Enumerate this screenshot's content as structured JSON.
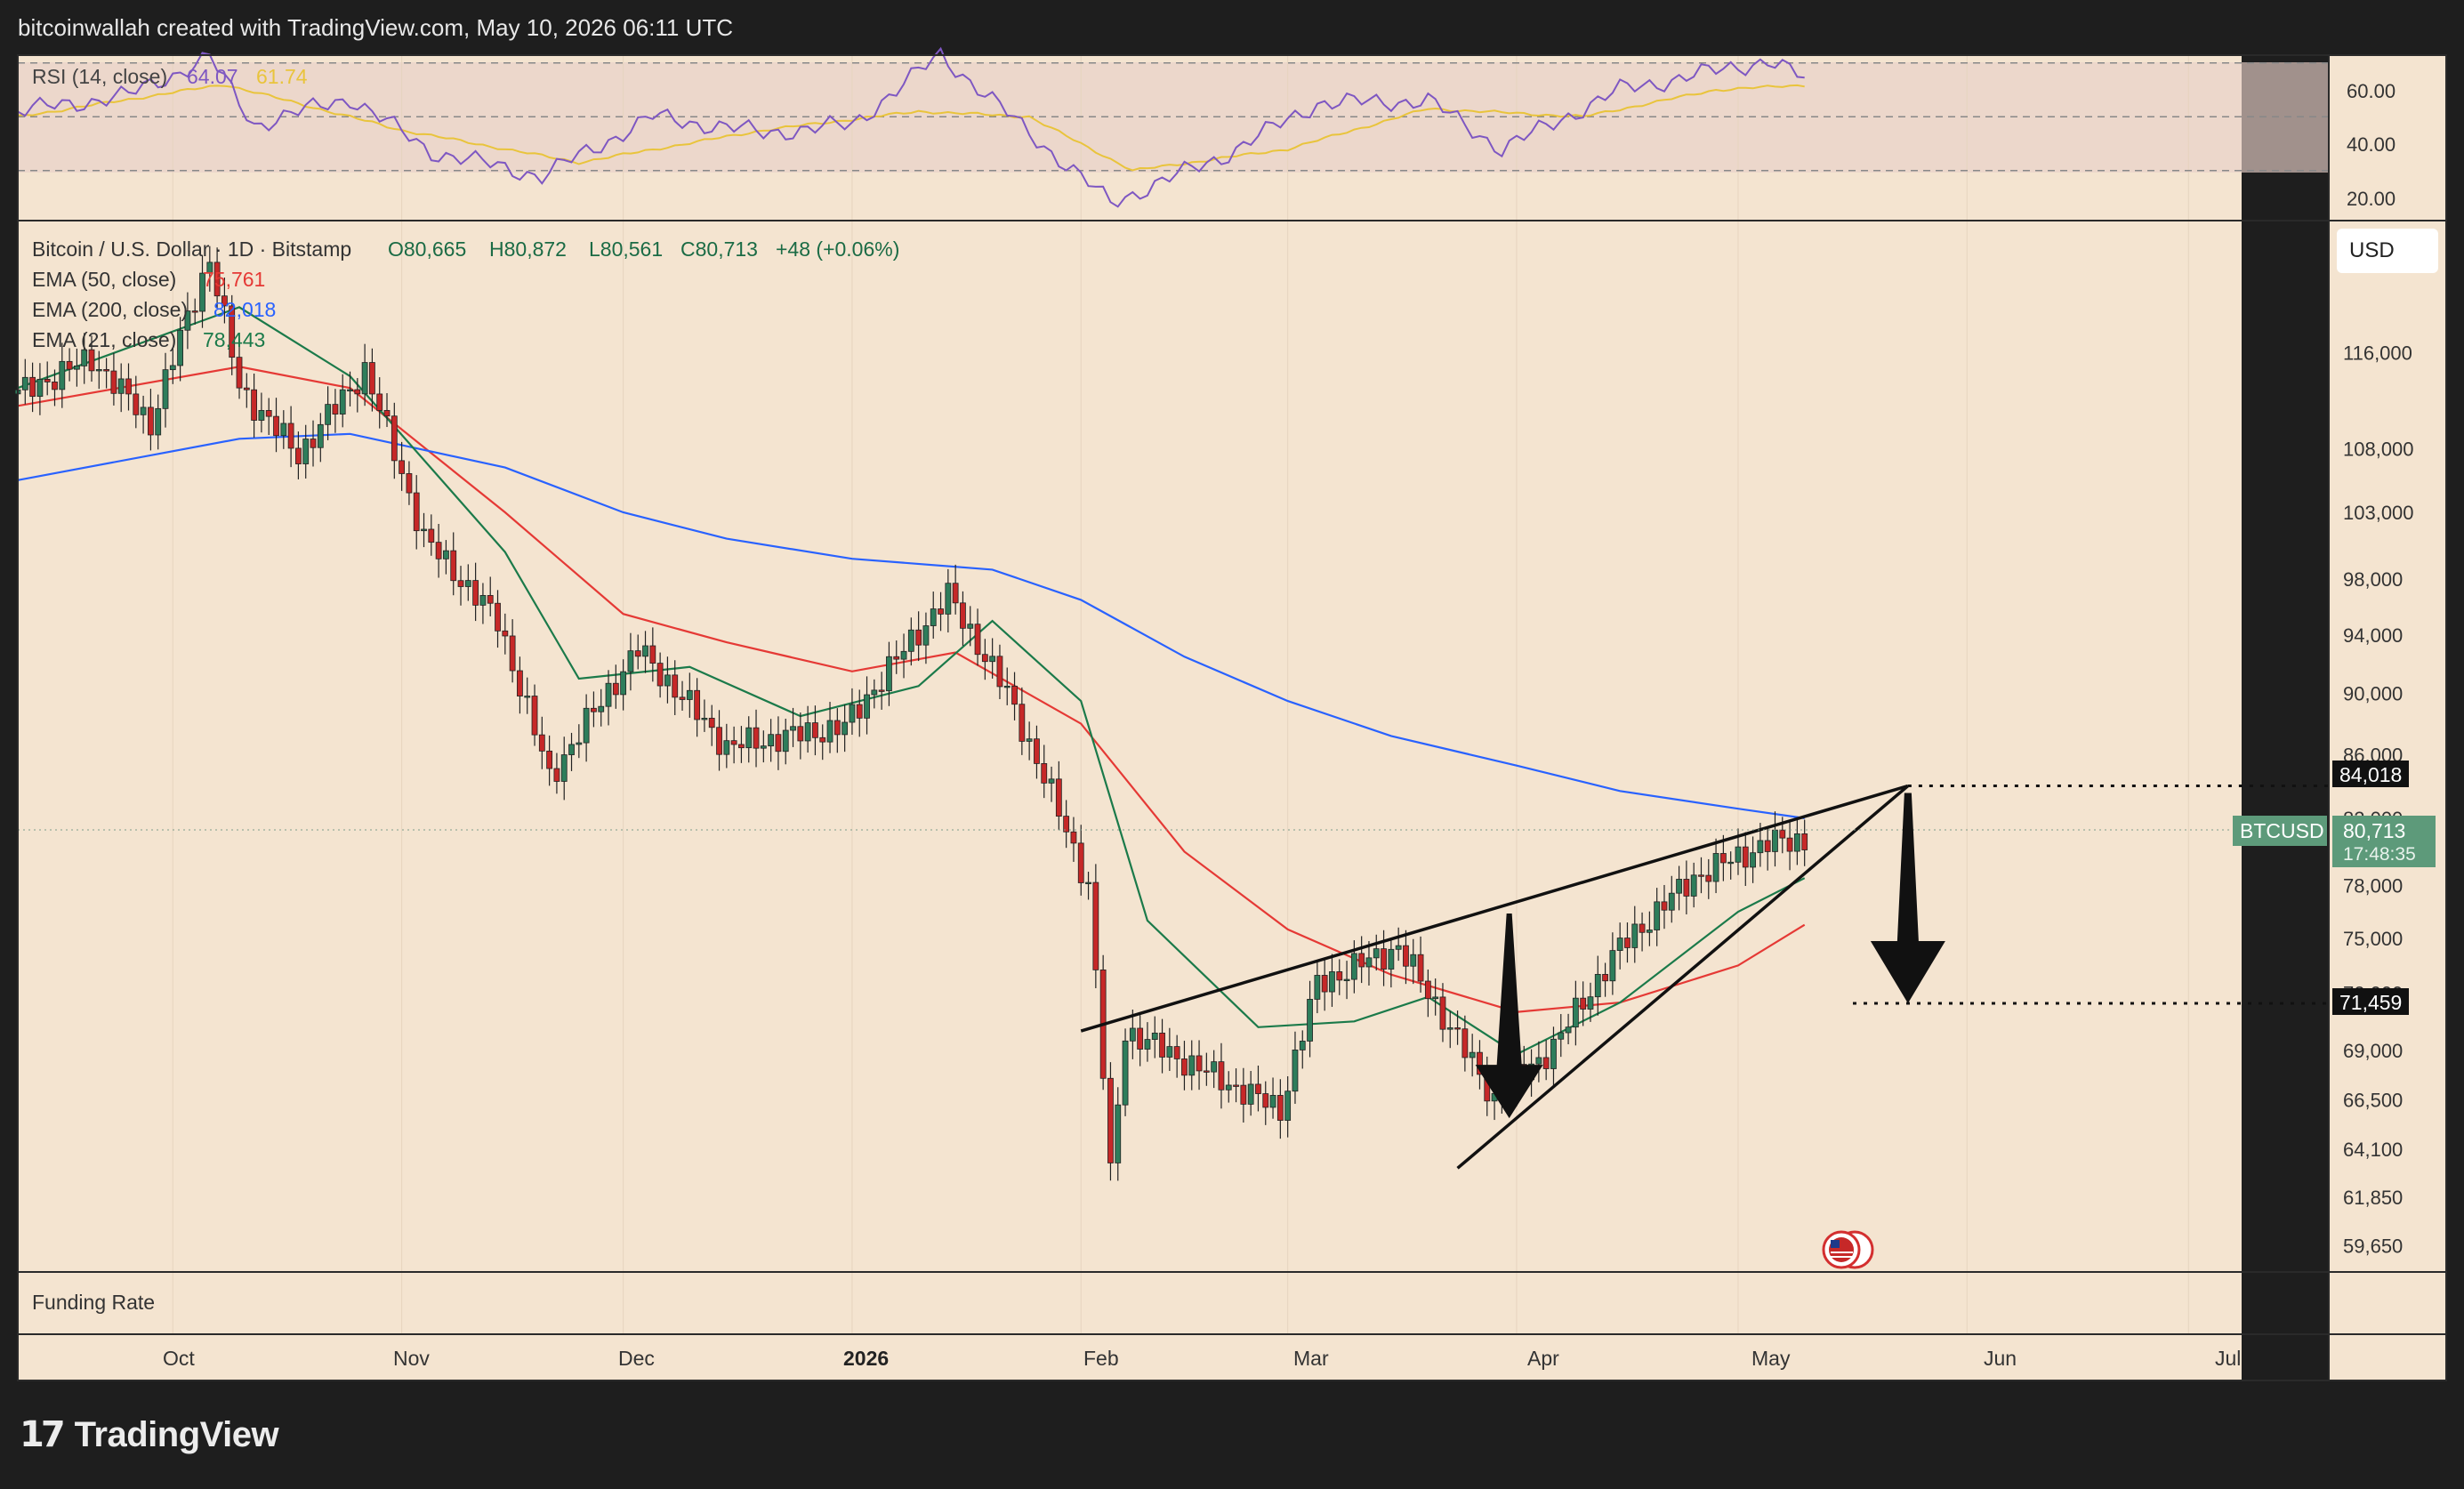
{
  "header": {
    "attribution": "bitcoinwallah created with TradingView.com, May 10, 2026 06:11 UTC"
  },
  "rsi_panel": {
    "label": "RSI (14, close)",
    "value": "64.07",
    "ma_value": "61.74",
    "ticks": [
      "60.00",
      "40.00",
      "20.00"
    ],
    "colors": {
      "rsi": "#7e57c2",
      "ma": "#e9c43c"
    }
  },
  "price_panel": {
    "symbol_line": "Bitcoin / U.S. Dollar · 1D · Bitstamp",
    "ohlc": {
      "o": "O80,665",
      "h": "H80,872",
      "l": "L80,561",
      "c": "C80,713",
      "chg": "+48 (+0.06%)"
    },
    "indicators": [
      {
        "label": "EMA (50, close)",
        "value": "75,761",
        "color": "#e53935"
      },
      {
        "label": "EMA (200, close)",
        "value": "82,018",
        "color": "#2962ff"
      },
      {
        "label": "EMA (21, close)",
        "value": "78,443",
        "color": "#1b7a4a"
      }
    ],
    "currency_button": "USD",
    "price_ticks": [
      "116,000",
      "108,000",
      "103,000",
      "98,000",
      "94,000",
      "90,000",
      "86,000",
      "82,000",
      "78,000",
      "75,000",
      "72,000",
      "69,000",
      "66,500",
      "64,100",
      "61,850",
      "59,650"
    ],
    "target_upper": "84,018",
    "target_lower": "71,459",
    "last_symbol": "BTCUSD",
    "last_price": "80,713",
    "countdown": "17:48:35"
  },
  "funding_panel": {
    "label": "Funding Rate"
  },
  "time_axis": {
    "labels": [
      "Oct",
      "Nov",
      "Dec",
      "2026",
      "Feb",
      "Mar",
      "Apr",
      "May",
      "Jun",
      "Jul"
    ]
  },
  "footer": {
    "brand": "TradingView",
    "logo_mark": "17"
  },
  "chart_data": {
    "type": "candlestick",
    "symbol": "BTCUSD",
    "interval": "1D",
    "exchange": "Bitstamp",
    "x_range": [
      "2025-09-10",
      "2026-07-20"
    ],
    "y_scale": "log",
    "ylim": [
      58500,
      128000
    ],
    "series": [
      {
        "name": "EMA (50, close)",
        "color": "#e53935",
        "points": [
          [
            "2025-09-10",
            111500
          ],
          [
            "2025-10-10",
            114800
          ],
          [
            "2025-10-25",
            113000
          ],
          [
            "2025-11-15",
            103000
          ],
          [
            "2025-12-01",
            95500
          ],
          [
            "2025-12-15",
            93500
          ],
          [
            "2026-01-01",
            91500
          ],
          [
            "2026-01-15",
            92800
          ],
          [
            "2026-02-01",
            88000
          ],
          [
            "2026-02-15",
            80000
          ],
          [
            "2026-03-01",
            75500
          ],
          [
            "2026-03-15",
            73000
          ],
          [
            "2026-04-01",
            71000
          ],
          [
            "2026-04-15",
            71500
          ],
          [
            "2026-05-01",
            73500
          ],
          [
            "2026-05-10",
            75761
          ]
        ]
      },
      {
        "name": "EMA (200, close)",
        "color": "#2962ff",
        "points": [
          [
            "2025-09-10",
            105500
          ],
          [
            "2025-10-10",
            108800
          ],
          [
            "2025-10-25",
            109200
          ],
          [
            "2025-11-15",
            106500
          ],
          [
            "2025-12-01",
            103000
          ],
          [
            "2025-12-15",
            101000
          ],
          [
            "2026-01-01",
            99500
          ],
          [
            "2026-01-20",
            98700
          ],
          [
            "2026-02-01",
            96500
          ],
          [
            "2026-02-15",
            92500
          ],
          [
            "2026-03-01",
            89500
          ],
          [
            "2026-03-15",
            87200
          ],
          [
            "2026-04-01",
            85300
          ],
          [
            "2026-04-15",
            83700
          ],
          [
            "2026-05-01",
            82600
          ],
          [
            "2026-05-10",
            82018
          ]
        ]
      },
      {
        "name": "EMA (21, close)",
        "color": "#1b7a4a",
        "points": [
          [
            "2025-09-10",
            113000
          ],
          [
            "2025-10-10",
            120000
          ],
          [
            "2025-10-25",
            114000
          ],
          [
            "2025-11-15",
            100000
          ],
          [
            "2025-11-25",
            91000
          ],
          [
            "2025-12-10",
            91800
          ],
          [
            "2025-12-25",
            88500
          ],
          [
            "2026-01-10",
            90500
          ],
          [
            "2026-01-20",
            95000
          ],
          [
            "2026-02-01",
            89500
          ],
          [
            "2026-02-10",
            76000
          ],
          [
            "2026-02-25",
            70200
          ],
          [
            "2026-03-10",
            70500
          ],
          [
            "2026-03-20",
            71800
          ],
          [
            "2026-04-01",
            68800
          ],
          [
            "2026-04-15",
            71500
          ],
          [
            "2026-05-01",
            76500
          ],
          [
            "2026-05-10",
            78443
          ]
        ]
      }
    ],
    "close_path": [
      [
        "2025-09-10",
        112500
      ],
      [
        "2025-09-20",
        115500
      ],
      [
        "2025-09-28",
        110000
      ],
      [
        "2025-10-06",
        124500
      ],
      [
        "2025-10-10",
        113000
      ],
      [
        "2025-10-18",
        107500
      ],
      [
        "2025-10-27",
        114500
      ],
      [
        "2025-11-04",
        101000
      ],
      [
        "2025-11-14",
        95000
      ],
      [
        "2025-11-21",
        84500
      ],
      [
        "2025-12-03",
        93000
      ],
      [
        "2025-12-15",
        86500
      ],
      [
        "2025-12-31",
        87800
      ],
      [
        "2026-01-14",
        96800
      ],
      [
        "2026-01-22",
        90000
      ],
      [
        "2026-02-02",
        78000
      ],
      [
        "2026-02-05",
        62800
      ],
      [
        "2026-02-07",
        70000
      ],
      [
        "2026-02-20",
        67500
      ],
      [
        "2026-02-28",
        66000
      ],
      [
        "2026-03-05",
        72500
      ],
      [
        "2026-03-16",
        74500
      ],
      [
        "2026-03-29",
        66500
      ],
      [
        "2026-04-06",
        69200
      ],
      [
        "2026-04-15",
        74500
      ],
      [
        "2026-04-25",
        78500
      ],
      [
        "2026-05-05",
        80500
      ],
      [
        "2026-05-10",
        80713
      ]
    ],
    "rsi_series": [
      [
        "2025-09-10",
        52
      ],
      [
        "2025-09-25",
        58
      ],
      [
        "2025-10-06",
        72
      ],
      [
        "2025-10-12",
        47
      ],
      [
        "2025-10-25",
        57
      ],
      [
        "2025-11-05",
        37
      ],
      [
        "2025-11-20",
        28
      ],
      [
        "2025-12-05",
        50
      ],
      [
        "2025-12-20",
        44
      ],
      [
        "2026-01-01",
        47
      ],
      [
        "2026-01-13",
        73
      ],
      [
        "2026-01-25",
        44
      ],
      [
        "2026-02-05",
        18
      ],
      [
        "2026-02-20",
        35
      ],
      [
        "2026-03-05",
        55
      ],
      [
        "2026-03-20",
        56
      ],
      [
        "2026-03-30",
        38
      ],
      [
        "2026-04-15",
        60
      ],
      [
        "2026-04-28",
        67
      ],
      [
        "2026-05-05",
        71
      ],
      [
        "2026-05-10",
        64.07
      ]
    ],
    "rsi_ma_series": [
      [
        "2025-09-10",
        50
      ],
      [
        "2025-10-08",
        62
      ],
      [
        "2025-11-01",
        45
      ],
      [
        "2025-11-25",
        33
      ],
      [
        "2025-12-20",
        45
      ],
      [
        "2026-01-10",
        52
      ],
      [
        "2026-01-25",
        50
      ],
      [
        "2026-02-08",
        30
      ],
      [
        "2026-03-01",
        38
      ],
      [
        "2026-03-20",
        53
      ],
      [
        "2026-04-10",
        50
      ],
      [
        "2026-04-28",
        60
      ],
      [
        "2026-05-10",
        61.74
      ]
    ],
    "rsi_levels": [
      70,
      50,
      30
    ],
    "annotations": {
      "rising_wedge_upper": [
        [
          "2026-02-01",
          70000
        ],
        [
          "2026-05-24",
          84018
        ]
      ],
      "rising_wedge_lower": [
        [
          "2026-03-24",
          63200
        ],
        [
          "2026-05-24",
          84018
        ]
      ],
      "target_levels": [
        84018,
        71459
      ]
    }
  }
}
